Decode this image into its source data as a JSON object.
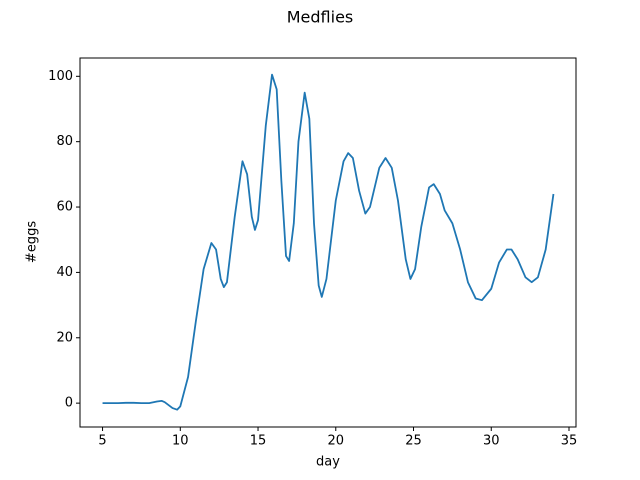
{
  "chart_data": {
    "type": "line",
    "title": "Medflies",
    "x_label": "day",
    "y_label": "#eggs",
    "x": [
      5,
      5.5,
      6,
      6.5,
      7,
      7.5,
      8,
      8.5,
      8.8,
      9,
      9.5,
      9.8,
      10,
      10.5,
      11,
      11.5,
      12,
      12.3,
      12.6,
      12.8,
      13,
      13.5,
      14,
      14.3,
      14.6,
      14.8,
      15,
      15.5,
      15.9,
      16.2,
      16.5,
      16.8,
      17,
      17.3,
      17.6,
      18,
      18.3,
      18.6,
      18.9,
      19.1,
      19.4,
      20,
      20.5,
      20.8,
      21.1,
      21.5,
      21.9,
      22.2,
      22.8,
      23.2,
      23.6,
      24,
      24.5,
      24.8,
      25.1,
      25.5,
      26,
      26.3,
      26.7,
      27,
      27.5,
      28,
      28.5,
      29,
      29.4,
      30,
      30.5,
      31,
      31.3,
      31.7,
      32.2,
      32.6,
      33,
      33.5,
      34
    ],
    "series": [
      {
        "name": "eggs",
        "color": "#1f77b4",
        "values": [
          0,
          0,
          0,
          0.1,
          0.1,
          0,
          0,
          0.5,
          0.7,
          0.3,
          -1.5,
          -2,
          -1,
          8,
          25,
          41,
          49,
          47,
          38,
          35.5,
          37,
          57,
          74,
          70,
          57,
          53,
          56,
          85,
          100.5,
          96,
          68,
          45,
          43.5,
          55,
          80,
          95,
          87,
          55,
          36,
          32.5,
          38,
          62,
          74,
          76.5,
          75,
          65,
          58,
          60,
          72,
          75,
          72,
          62,
          44,
          38,
          41,
          54,
          66,
          67,
          64,
          59,
          55,
          47,
          37,
          32,
          31.5,
          35,
          43,
          47,
          47,
          44,
          38.5,
          37,
          38.5,
          47,
          64
        ]
      }
    ],
    "xlim": [
      3.55,
      35.45
    ],
    "ylim": [
      -7.3,
      105.6
    ],
    "xticks": [
      5,
      10,
      15,
      20,
      25,
      30,
      35
    ],
    "yticks": [
      0,
      20,
      40,
      60,
      80,
      100
    ],
    "grid": false
  }
}
